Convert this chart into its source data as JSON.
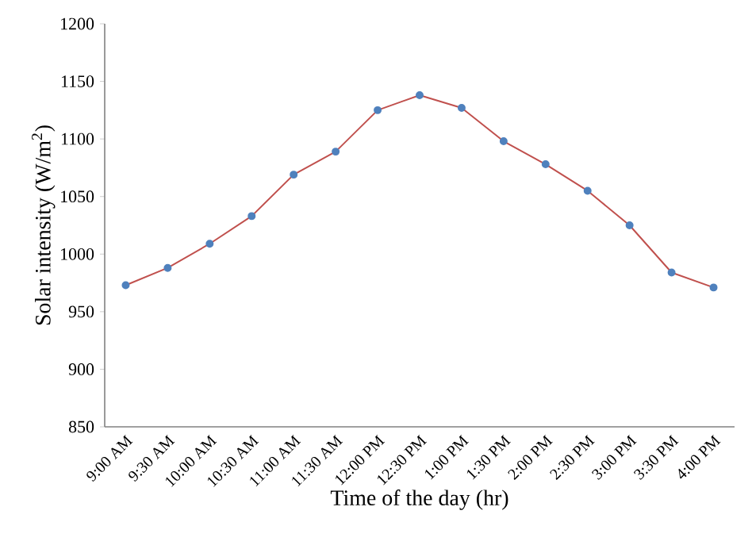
{
  "chart_data": {
    "type": "line",
    "xlabel": "Time of the day (hr)",
    "ylabel": "Solar intensity (W/m$^{2}$)",
    "categories": [
      "9:00 AM",
      "9:30 AM",
      "10:00 AM",
      "10:30 AM",
      "11:00 AM",
      "11:30 AM",
      "12:00 PM",
      "12:30 PM",
      "1:00 PM",
      "1:30 PM",
      "2:00 PM",
      "2:30 PM",
      "3:00 PM",
      "3:30 PM",
      "4:00 PM"
    ],
    "series": [
      {
        "color": "#c0504d",
        "values": [
          973,
          988,
          1009,
          1033,
          1069,
          1089,
          1125,
          1138,
          1127,
          1098,
          1078,
          1055,
          1025,
          984,
          971
        ]
      }
    ],
    "marker": "circle",
    "ylim": [
      850,
      1200
    ],
    "yticks": [
      850,
      900,
      950,
      1000,
      1050,
      1100,
      1150,
      1200
    ],
    "grid": false
  }
}
